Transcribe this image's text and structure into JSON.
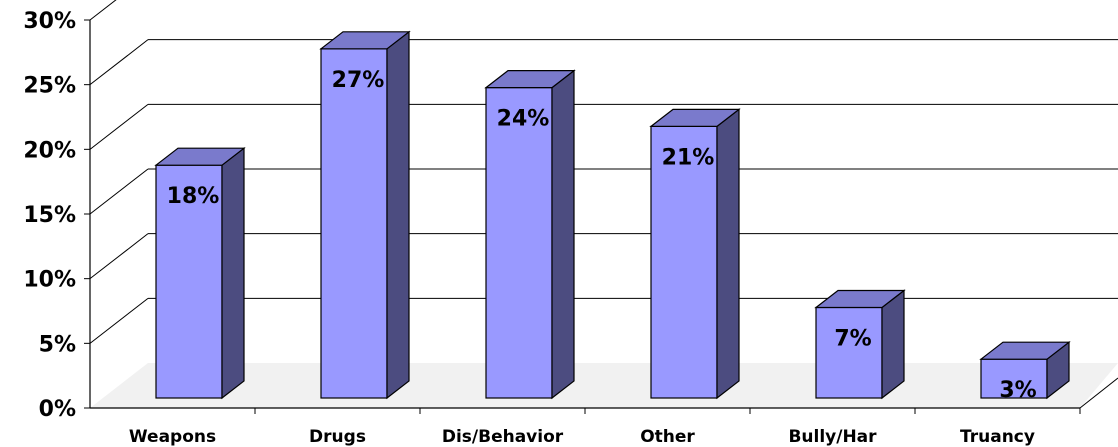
{
  "chart_data": {
    "type": "bar",
    "categories": [
      "Weapons",
      "Drugs",
      "Dis/Behavior",
      "Other",
      "Bully/Har",
      "Truancy"
    ],
    "values": [
      18,
      27,
      24,
      21,
      7,
      3
    ],
    "data_labels": [
      "18%",
      "27%",
      "24%",
      "21%",
      "7%",
      "3%"
    ],
    "ylim": [
      0,
      30
    ],
    "yticks": [
      0,
      5,
      10,
      15,
      20,
      25,
      30
    ],
    "ytick_labels": [
      "0%",
      "5%",
      "10%",
      "15%",
      "20%",
      "25%",
      "30%"
    ],
    "title": "",
    "xlabel": "",
    "ylabel": "",
    "grid": true,
    "legend": "none",
    "style": "3d-column",
    "colors": {
      "bar_front": "#9999ff",
      "bar_side": "#4c4c80",
      "bar_top": "#7a7acc",
      "gridline": "#000000",
      "floor": "#e8e8e8"
    }
  }
}
